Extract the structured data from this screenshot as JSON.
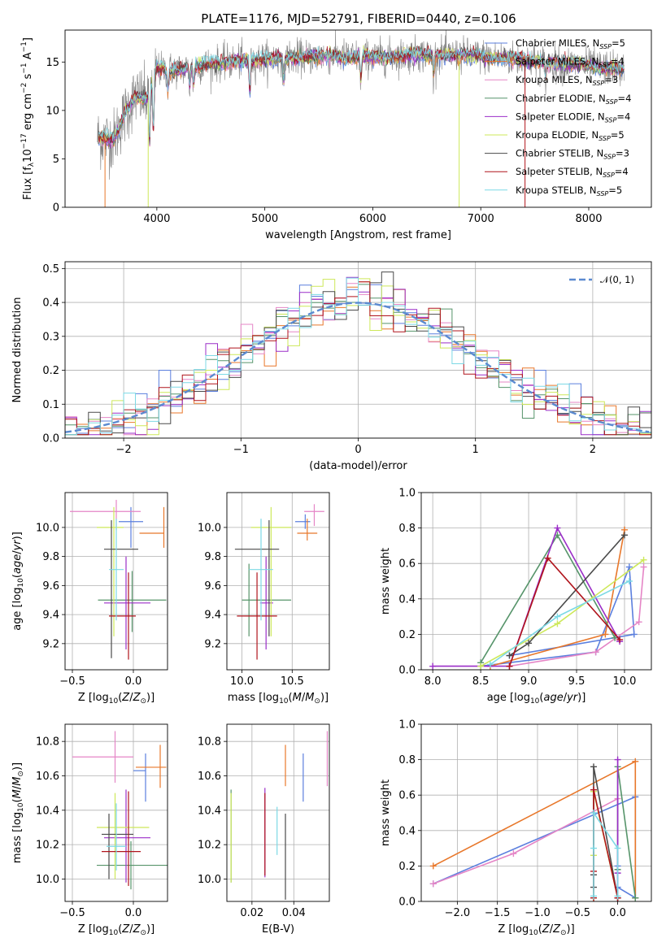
{
  "title": "PLATE=1176, MJD=52791, FIBERID=0440, z=0.106",
  "colors": [
    "#5b7fde",
    "#e8772a",
    "#e585c6",
    "#56946a",
    "#9b2ec8",
    "#cde859",
    "#4a4a4a",
    "#b0141c",
    "#7cd9e5"
  ],
  "chart_data": [
    {
      "type": "line",
      "id": "spectrum",
      "xlabel": "wavelength [Angstrom, rest frame]",
      "ylabel": "Flux [f_λ10^-17 erg cm^-2 s^-1 A^-1]",
      "xlim": [
        3150,
        8580
      ],
      "ylim": [
        0,
        18.3
      ],
      "xticks": [
        4000,
        5000,
        6000,
        7000,
        8000
      ],
      "yticks": [
        0,
        5,
        10,
        15
      ],
      "legend_position": "top-right",
      "legend": [
        "Chabrier MILES, N_SSP=5",
        "Salpeter MILES, N_SSP=4",
        "Kroupa MILES, N_SSP=3",
        "Chabrier ELODIE, N_SSP=4",
        "Salpeter ELODIE, N_SSP=4",
        "Kroupa ELODIE, N_SSP=5",
        "Chabrier STELIB, N_SSP=3",
        "Salpeter STELIB, N_SSP=4",
        "Kroupa STELIB, N_SSP=5"
      ],
      "observed": {
        "color": "gray",
        "range": [
          3450,
          8330
        ]
      },
      "continuum_points": [
        [
          3450,
          7.2
        ],
        [
          3600,
          7.0
        ],
        [
          3700,
          9.5
        ],
        [
          3800,
          11.5
        ],
        [
          3900,
          11.2
        ],
        [
          4000,
          14.2
        ],
        [
          4200,
          14.2
        ],
        [
          4500,
          14.8
        ],
        [
          5000,
          15.3
        ],
        [
          5500,
          15.6
        ],
        [
          6000,
          15.5
        ],
        [
          6500,
          15.8
        ],
        [
          7000,
          15.6
        ],
        [
          7500,
          15.1
        ],
        [
          8000,
          14.6
        ],
        [
          8330,
          14.2
        ]
      ],
      "absorption_lines": [
        [
          3933,
          5.6
        ],
        [
          3968,
          5.6
        ],
        [
          4102,
          2.0
        ],
        [
          4304,
          2.0
        ],
        [
          4340,
          2.0
        ],
        [
          4861,
          3.2
        ],
        [
          5175,
          2.5
        ],
        [
          5890,
          2.5
        ],
        [
          6563,
          2.0
        ],
        [
          7600,
          1.5
        ]
      ],
      "spikes_to_zero": [
        [
          3520,
          "#e8772a"
        ],
        [
          3920,
          "#cde859"
        ],
        [
          6800,
          "#cde859"
        ],
        [
          7410,
          "#b0141c"
        ]
      ]
    },
    {
      "type": "histogram",
      "id": "residuals",
      "xlabel": "(data-model)/error",
      "ylabel": "Normed distribution",
      "xlim": [
        -2.5,
        2.5
      ],
      "ylim": [
        0,
        0.52
      ],
      "xticks": [
        -2,
        -1,
        0,
        1,
        2
      ],
      "yticks": [
        0,
        0.1,
        0.2,
        0.3,
        0.4,
        0.5
      ],
      "grid": true,
      "bin_width": 0.1,
      "legend": "𝒩(0, 1)",
      "legend_position": "top-right",
      "reference_curve": {
        "name": "𝒩(0, 1)",
        "mean": 0,
        "sigma": 1,
        "style": "dashed",
        "color": "#5b8ad0"
      }
    },
    {
      "type": "errorbar",
      "id": "age_vs_Z",
      "xlabel": "Z [log10(Z/Z⊙)]",
      "ylabel": "age [log10(age/yr)]",
      "xlim": [
        -0.56,
        0.28
      ],
      "ylim": [
        9.02,
        10.24
      ],
      "xticks": [
        -0.5,
        0.0
      ],
      "yticks": [
        9.2,
        9.4,
        9.6,
        9.8,
        10.0
      ],
      "grid": true,
      "points": [
        {
          "x": -0.02,
          "xerr": [
            0.1,
            0.1
          ],
          "y": 10.04,
          "yerr": [
            0.18,
            0.1
          ]
        },
        {
          "x": 0.25,
          "xerr": [
            0.2,
            0.0
          ],
          "y": 9.96,
          "yerr": [
            0.1,
            0.18
          ]
        },
        {
          "x": -0.14,
          "xerr": [
            0.38,
            0.2
          ],
          "y": 10.11,
          "yerr": [
            0.13,
            0.08
          ]
        },
        {
          "x": -0.01,
          "xerr": [
            0.28,
            0.28
          ],
          "y": 9.5,
          "yerr": [
            0.22,
            0.2
          ]
        },
        {
          "x": -0.06,
          "xerr": [
            0.18,
            0.2
          ],
          "y": 9.48,
          "yerr": [
            0.32,
            0.32
          ]
        },
        {
          "x": -0.16,
          "xerr": [
            0.14,
            0.08
          ],
          "y": 10.0,
          "yerr": [
            0.75,
            0.14
          ]
        },
        {
          "x": -0.18,
          "xerr": [
            0.06,
            0.22
          ],
          "y": 9.85,
          "yerr": [
            0.75,
            0.2
          ]
        },
        {
          "x": -0.04,
          "xerr": [
            0.16,
            0.06
          ],
          "y": 9.39,
          "yerr": [
            0.3,
            0.3
          ]
        },
        {
          "x": -0.14,
          "xerr": [
            0.06,
            0.06
          ],
          "y": 9.71,
          "yerr": [
            0.35,
            0.35
          ]
        }
      ]
    },
    {
      "type": "errorbar",
      "id": "age_vs_mass",
      "xlabel": "mass [log10(M/M⊙)]",
      "ylabel": "",
      "xlim": [
        9.85,
        10.87
      ],
      "ylim": [
        9.02,
        10.24
      ],
      "xticks": [
        10.0,
        10.5
      ],
      "yticks": [
        9.2,
        9.4,
        9.6,
        9.8,
        10.0
      ],
      "grid": true,
      "points": [
        {
          "x": 10.63,
          "xerr": [
            0.1,
            0.05
          ],
          "y": 10.04,
          "yerr": [
            0.05,
            0.05
          ]
        },
        {
          "x": 10.65,
          "xerr": [
            0.1,
            0.1
          ],
          "y": 9.96,
          "yerr": [
            0.05,
            0.1
          ]
        },
        {
          "x": 10.72,
          "xerr": [
            0.1,
            0.1
          ],
          "y": 10.11,
          "yerr": [
            0.1,
            0.05
          ]
        },
        {
          "x": 10.07,
          "xerr": [
            0.07,
            0.42
          ],
          "y": 9.5,
          "yerr": [
            0.25,
            0.25
          ]
        },
        {
          "x": 10.24,
          "xerr": [
            0.06,
            0.07
          ],
          "y": 9.48,
          "yerr": [
            0.32,
            0.32
          ]
        },
        {
          "x": 10.29,
          "xerr": [
            0.2,
            0.2
          ],
          "y": 10.0,
          "yerr": [
            0.75,
            0.14
          ]
        },
        {
          "x": 10.27,
          "xerr": [
            0.34,
            0.1
          ],
          "y": 9.85,
          "yerr": [
            0.6,
            0.2
          ]
        },
        {
          "x": 10.15,
          "xerr": [
            0.2,
            0.2
          ],
          "y": 9.39,
          "yerr": [
            0.3,
            0.3
          ]
        },
        {
          "x": 10.19,
          "xerr": [
            0.12,
            0.12
          ],
          "y": 9.71,
          "yerr": [
            0.35,
            0.35
          ]
        }
      ]
    },
    {
      "type": "line",
      "id": "mass_weight_vs_age",
      "xlabel": "age [log10(age/yr)]",
      "ylabel": "mass weight",
      "xlim": [
        7.88,
        10.28
      ],
      "ylim": [
        0,
        1.0
      ],
      "xticks": [
        8.0,
        8.5,
        9.0,
        9.5,
        10.0
      ],
      "yticks": [
        0.0,
        0.2,
        0.4,
        0.6,
        0.8,
        1.0
      ],
      "grid": true,
      "series": [
        {
          "points": [
            [
              8.5,
              0.02
            ],
            [
              9.7,
              0.1
            ],
            [
              10.05,
              0.58
            ],
            [
              10.1,
              0.2
            ],
            [
              8.8,
              0.08
            ]
          ]
        },
        {
          "points": [
            [
              8.6,
              0.02
            ],
            [
              9.8,
              0.2
            ],
            [
              10.0,
              0.79
            ]
          ]
        },
        {
          "points": [
            [
              8.8,
              0.02
            ],
            [
              9.7,
              0.1
            ],
            [
              10.15,
              0.27
            ],
            [
              10.2,
              0.58
            ]
          ]
        },
        {
          "points": [
            [
              8.5,
              0.04
            ],
            [
              9.3,
              0.76
            ],
            [
              9.9,
              0.18
            ]
          ]
        },
        {
          "points": [
            [
              8.0,
              0.02
            ],
            [
              8.8,
              0.02
            ],
            [
              9.3,
              0.8
            ],
            [
              9.95,
              0.16
            ]
          ]
        },
        {
          "points": [
            [
              8.5,
              0.02
            ],
            [
              9.3,
              0.26
            ],
            [
              10.2,
              0.62
            ]
          ]
        },
        {
          "points": [
            [
              8.8,
              0.08
            ],
            [
              9.0,
              0.15
            ],
            [
              10.0,
              0.76
            ]
          ]
        },
        {
          "points": [
            [
              8.8,
              0.02
            ],
            [
              9.2,
              0.63
            ],
            [
              9.95,
              0.17
            ]
          ]
        },
        {
          "points": [
            [
              8.6,
              0.03
            ],
            [
              9.3,
              0.3
            ],
            [
              10.05,
              0.5
            ]
          ]
        }
      ]
    },
    {
      "type": "errorbar",
      "id": "mass_vs_Z",
      "xlabel": "Z [log10(Z/Z⊙)]",
      "ylabel": "mass [log10(M/M⊙)]",
      "xlim": [
        -0.56,
        0.28
      ],
      "ylim": [
        9.87,
        10.9
      ],
      "xticks": [
        -0.5,
        0.0
      ],
      "yticks": [
        10.0,
        10.2,
        10.4,
        10.6,
        10.8
      ],
      "grid": true,
      "points": [
        {
          "x": 0.1,
          "xerr": [
            0.1,
            0.0
          ],
          "y": 10.63,
          "yerr": [
            0.18,
            0.1
          ]
        },
        {
          "x": 0.22,
          "xerr": [
            0.2,
            0.05
          ],
          "y": 10.65,
          "yerr": [
            0.12,
            0.13
          ]
        },
        {
          "x": -0.15,
          "xerr": [
            0.35,
            0.15
          ],
          "y": 10.71,
          "yerr": [
            0.15,
            0.15
          ]
        },
        {
          "x": -0.02,
          "xerr": [
            0.28,
            0.3
          ],
          "y": 10.08,
          "yerr": [
            0.14,
            0.14
          ]
        },
        {
          "x": -0.06,
          "xerr": [
            0.18,
            0.2
          ],
          "y": 10.24,
          "yerr": [
            0.26,
            0.28
          ]
        },
        {
          "x": -0.15,
          "xerr": [
            0.15,
            0.28
          ],
          "y": 10.3,
          "yerr": [
            0.3,
            0.2
          ]
        },
        {
          "x": -0.2,
          "xerr": [
            0.06,
            0.2
          ],
          "y": 10.26,
          "yerr": [
            0.26,
            0.12
          ]
        },
        {
          "x": -0.04,
          "xerr": [
            0.22,
            0.1
          ],
          "y": 10.16,
          "yerr": [
            0.2,
            0.35
          ]
        },
        {
          "x": -0.14,
          "xerr": [
            0.08,
            0.08
          ],
          "y": 10.19,
          "yerr": [
            0.14,
            0.25
          ]
        }
      ]
    },
    {
      "type": "errorbar",
      "id": "mass_vs_EBV",
      "xlabel": "E(B-V)",
      "ylabel": "",
      "xlim": [
        0.008,
        0.057
      ],
      "ylim": [
        9.87,
        10.9
      ],
      "xticks": [
        0.02,
        0.04
      ],
      "yticks": [
        10.0,
        10.2,
        10.4,
        10.6,
        10.8
      ],
      "grid": true,
      "points": [
        {
          "x": 0.0445,
          "xerr": [
            0,
            0
          ],
          "y": 10.59,
          "yerr": [
            0.14,
            0.14
          ]
        },
        {
          "x": 0.036,
          "xerr": [
            0,
            0
          ],
          "y": 10.66,
          "yerr": [
            0.12,
            0.12
          ]
        },
        {
          "x": 0.056,
          "xerr": [
            0,
            0
          ],
          "y": 10.7,
          "yerr": [
            0.16,
            0.16
          ]
        },
        {
          "x": 0.01,
          "xerr": [
            0,
            0
          ],
          "y": 10.24,
          "yerr": [
            0.26,
            0.28
          ]
        },
        {
          "x": 0.0262,
          "xerr": [
            0,
            0
          ],
          "y": 10.27,
          "yerr": [
            0.26,
            0.26
          ]
        },
        {
          "x": 0.01,
          "xerr": [
            0,
            0
          ],
          "y": 10.22,
          "yerr": [
            0.24,
            0.28
          ]
        },
        {
          "x": 0.036,
          "xerr": [
            0,
            0
          ],
          "y": 10.13,
          "yerr": [
            0.25,
            0.25
          ]
        },
        {
          "x": 0.0262,
          "xerr": [
            0,
            0
          ],
          "y": 10.24,
          "yerr": [
            0.22,
            0.26
          ]
        },
        {
          "x": 0.032,
          "xerr": [
            0,
            0
          ],
          "y": 10.28,
          "yerr": [
            0.14,
            0.14
          ]
        }
      ]
    },
    {
      "type": "line",
      "id": "mass_weight_vs_Z",
      "xlabel": "Z [log10(Z/Z⊙)]",
      "ylabel": "mass weight",
      "xlim": [
        -2.45,
        0.42
      ],
      "ylim": [
        0,
        1.0
      ],
      "xticks": [
        -2.0,
        -1.5,
        -1.0,
        -0.5,
        0.0
      ],
      "yticks": [
        0.0,
        0.2,
        0.4,
        0.6,
        0.8,
        1.0
      ],
      "grid": true,
      "series": [
        {
          "points": [
            [
              -2.3,
              0.1
            ],
            [
              0.22,
              0.59
            ],
            [
              0.22,
              0.02
            ],
            [
              0.0,
              0.08
            ],
            [
              0.0,
              0.2
            ]
          ]
        },
        {
          "points": [
            [
              -2.3,
              0.2
            ],
            [
              0.22,
              0.79
            ],
            [
              0.22,
              0.02
            ]
          ]
        },
        {
          "points": [
            [
              -2.3,
              0.1
            ],
            [
              -1.3,
              0.27
            ],
            [
              0.0,
              0.58
            ],
            [
              0.0,
              0.02
            ]
          ]
        },
        {
          "points": [
            [
              0.22,
              0.02
            ],
            [
              0.0,
              0.76
            ],
            [
              0.0,
              0.18
            ]
          ]
        },
        {
          "points": [
            [
              0.0,
              0.02
            ],
            [
              0.0,
              0.8
            ],
            [
              0.0,
              0.16
            ],
            [
              0.0,
              0.02
            ]
          ]
        },
        {
          "points": [
            [
              -0.3,
              0.02
            ],
            [
              -0.3,
              0.26
            ],
            [
              -0.3,
              0.62
            ],
            [
              0.0,
              0.02
            ]
          ]
        },
        {
          "points": [
            [
              -0.3,
              0.08
            ],
            [
              -0.3,
              0.15
            ],
            [
              -0.3,
              0.76
            ],
            [
              0.0,
              0.02
            ]
          ]
        },
        {
          "points": [
            [
              -0.3,
              0.02
            ],
            [
              -0.3,
              0.17
            ],
            [
              -0.3,
              0.63
            ],
            [
              0.0,
              0.02
            ]
          ]
        },
        {
          "points": [
            [
              -0.3,
              0.03
            ],
            [
              -0.3,
              0.3
            ],
            [
              -0.3,
              0.5
            ],
            [
              0.0,
              0.3
            ],
            [
              0.0,
              0.03
            ]
          ]
        }
      ]
    }
  ]
}
